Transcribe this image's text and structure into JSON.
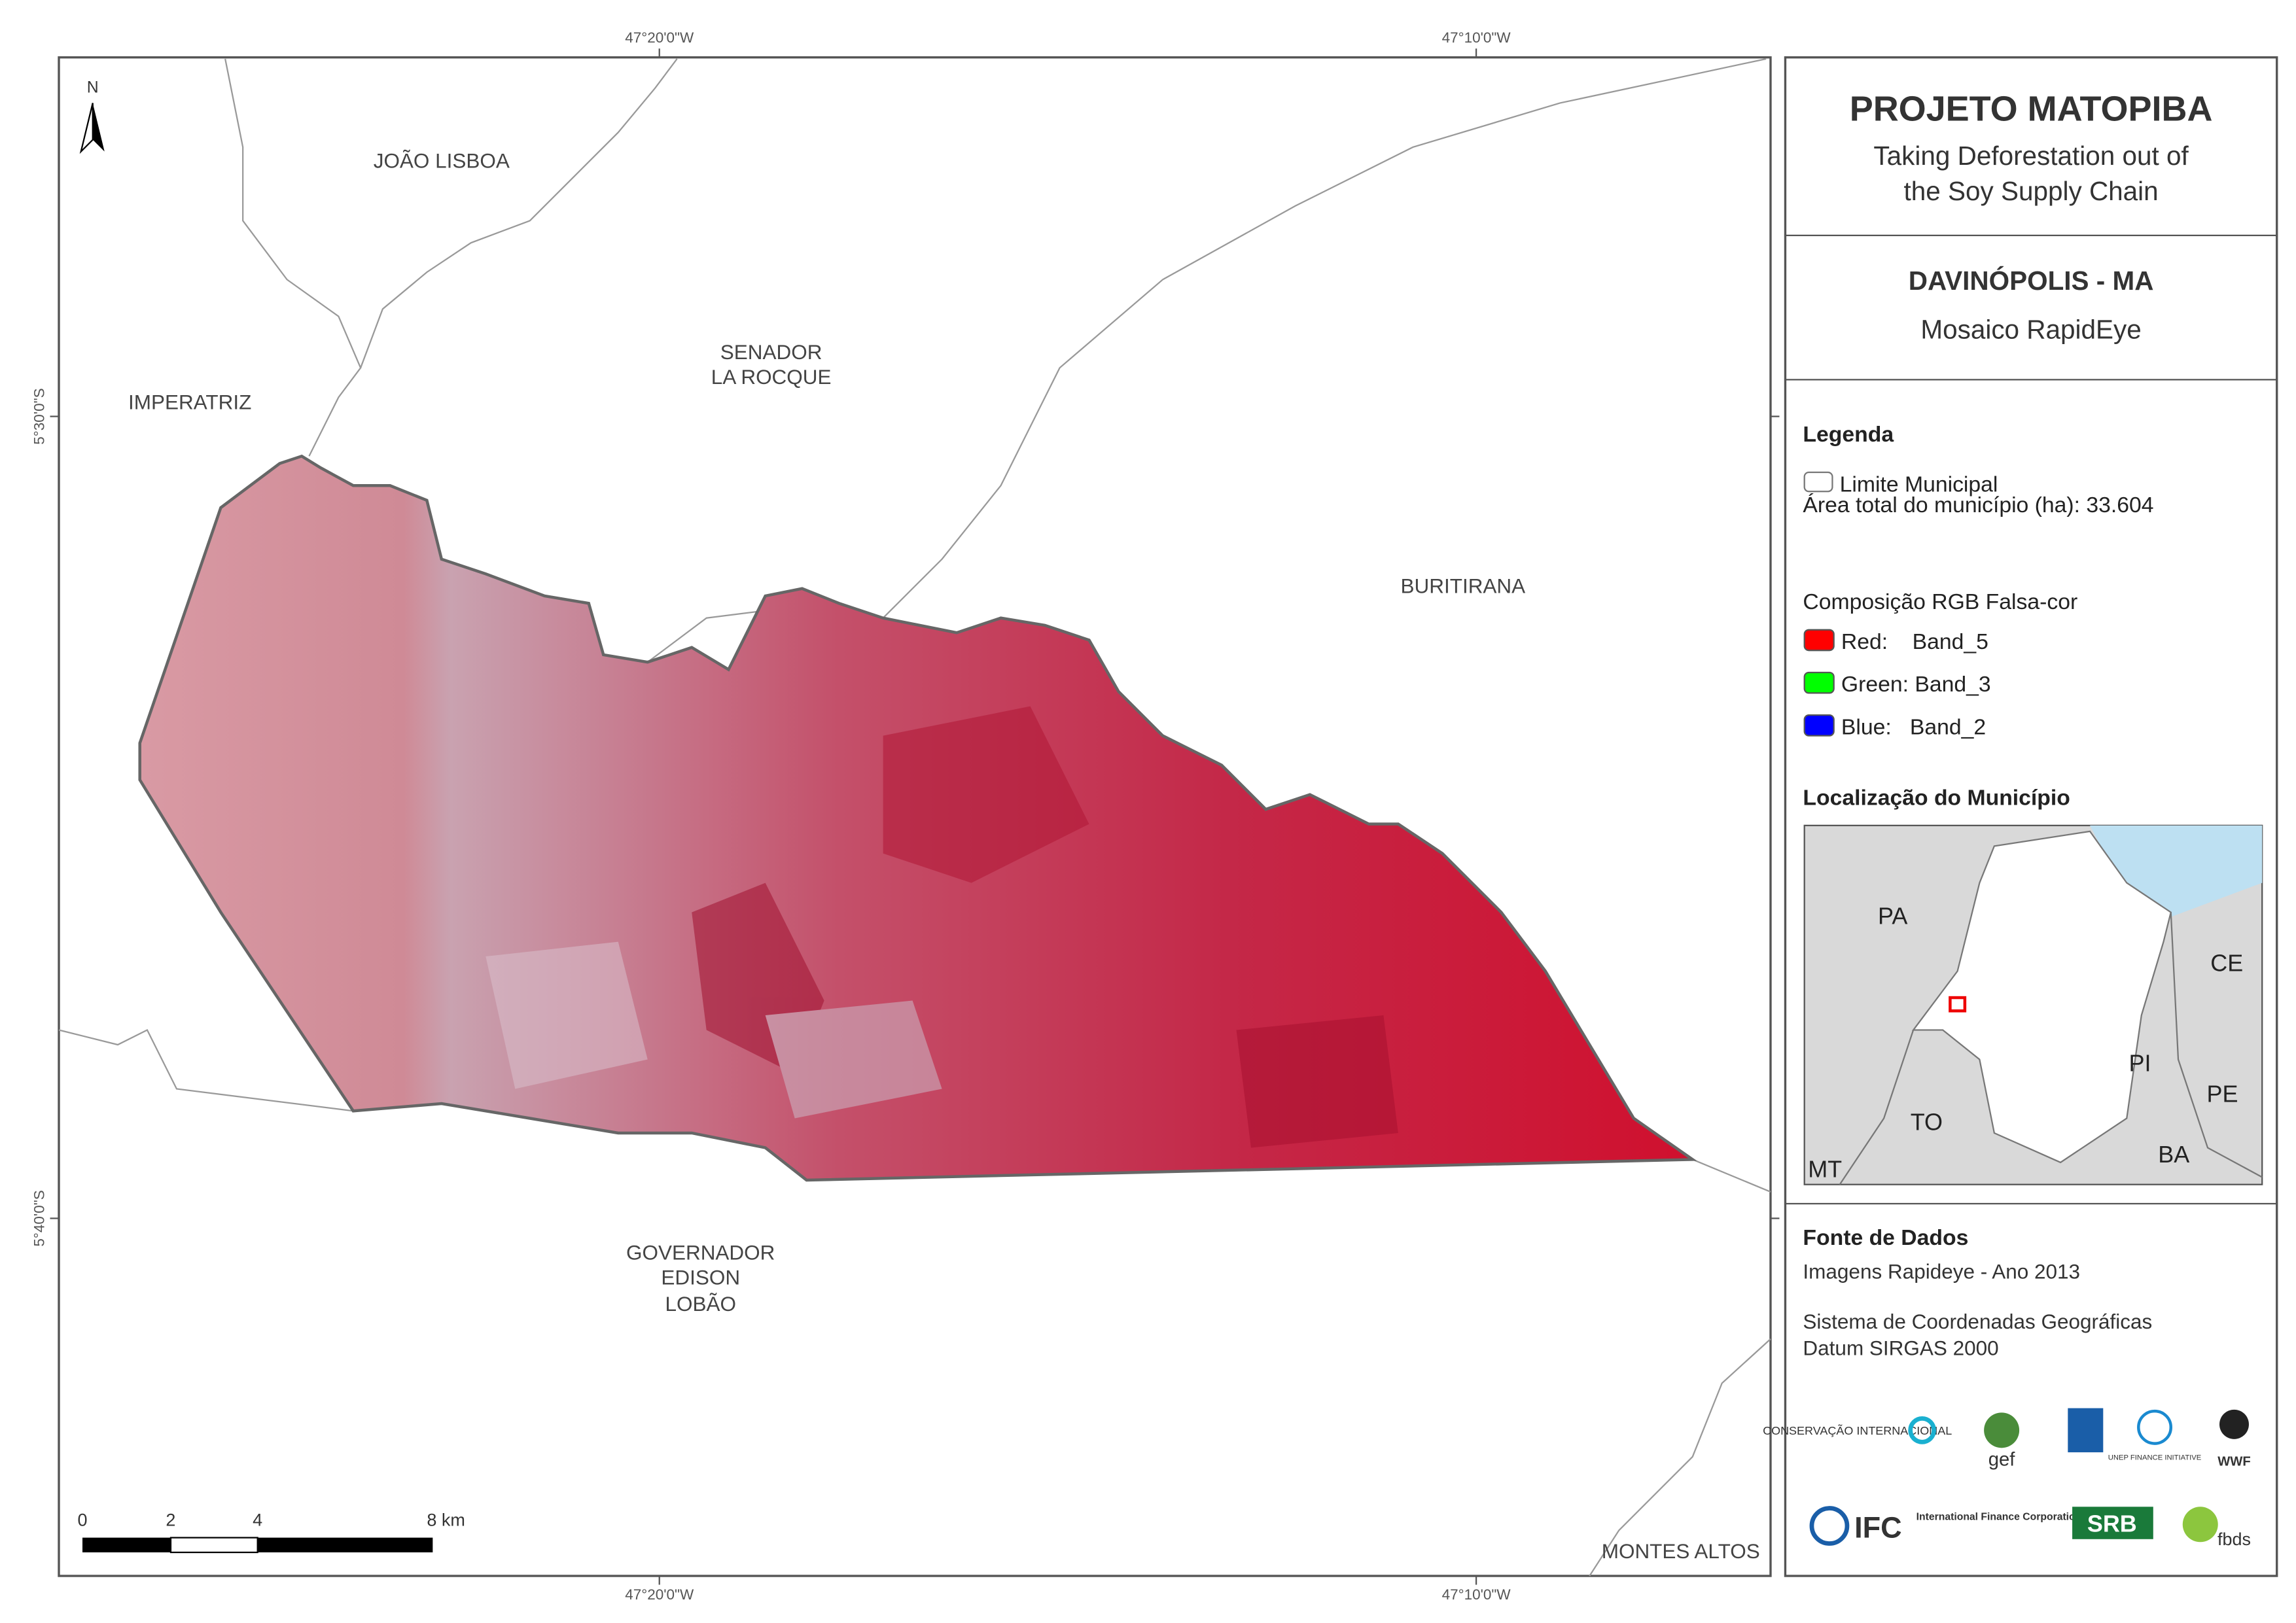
{
  "panel": {
    "title": "PROJETO MATOPIBA",
    "subtitle_lines": [
      "Taking Deforestation out of",
      "the Soy Supply Chain"
    ],
    "municipality": "DAVINÓPOLIS - MA",
    "mosaic": "Mosaico RapidEye"
  },
  "legend": {
    "title": "Legenda",
    "boundary": "Limite Municipal",
    "area": "Área total do município (ha): 33.604",
    "composition_title": "Composição RGB Falsa-cor",
    "bands": [
      {
        "label": "Red:    Band_5",
        "color": "#ff0000"
      },
      {
        "label": "Green: Band_3",
        "color": "#00ff00"
      },
      {
        "label": "Blue:   Band_2",
        "color": "#0000ff"
      }
    ]
  },
  "location": {
    "title": "Localização do Município",
    "states": [
      "PA",
      "CE",
      "PI",
      "PE",
      "TO",
      "BA",
      "MT"
    ]
  },
  "sources": {
    "title": "Fonte de Dados",
    "lines": [
      "Imagens Rapideye - Ano 2013",
      "Sistema de Coordenadas Geográficas",
      "Datum SIRGAS 2000"
    ]
  },
  "logos": [
    "CONSERVAÇÃO INTERNACIONAL",
    "gef",
    "UNEP FINANCE INITIATIVE",
    "WWF",
    "IFC",
    "International Finance Corporation",
    "SRB",
    "fbds"
  ],
  "map": {
    "north": "N",
    "places": [
      {
        "lines": [
          "JOÃO LISBOA"
        ]
      },
      {
        "lines": [
          "IMPERATRIZ"
        ]
      },
      {
        "lines": [
          "SENADOR",
          "LA ROCQUE"
        ]
      },
      {
        "lines": [
          "BURITIRANA"
        ]
      },
      {
        "lines": [
          "GOVERNADOR",
          "EDISON",
          "LOBÃO"
        ]
      },
      {
        "lines": [
          "MONTES ALTOS"
        ]
      }
    ],
    "longitudes": [
      "47°20'0\"W",
      "47°10'0\"W"
    ],
    "latitudes": [
      "5°30'0\"S",
      "5°40'0\"S"
    ],
    "scale_bar": [
      "0",
      "2",
      "4",
      "8 km"
    ]
  }
}
